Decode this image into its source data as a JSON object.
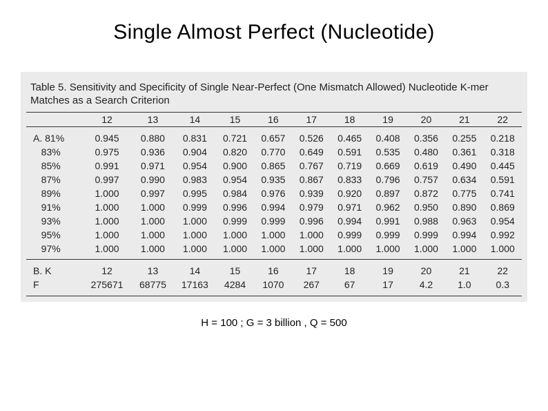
{
  "title": "Single Almost Perfect (Nucleotide)",
  "table": {
    "caption": "Table 5.  Sensitivity and Specificity of Single Near-Perfect (One Mismatch Allowed) Nucleotide K-mer Matches as a Search Criterion",
    "headers": [
      "12",
      "13",
      "14",
      "15",
      "16",
      "17",
      "18",
      "19",
      "20",
      "21",
      "22"
    ],
    "sectionA": {
      "label_prefix": "A.",
      "rows": [
        {
          "label": "81%",
          "values": [
            "0.945",
            "0.880",
            "0.831",
            "0.721",
            "0.657",
            "0.526",
            "0.465",
            "0.408",
            "0.356",
            "0.255",
            "0.218"
          ]
        },
        {
          "label": "83%",
          "values": [
            "0.975",
            "0.936",
            "0.904",
            "0.820",
            "0.770",
            "0.649",
            "0.591",
            "0.535",
            "0.480",
            "0.361",
            "0.318"
          ]
        },
        {
          "label": "85%",
          "values": [
            "0.991",
            "0.971",
            "0.954",
            "0.900",
            "0.865",
            "0.767",
            "0.719",
            "0.669",
            "0.619",
            "0.490",
            "0.445"
          ]
        },
        {
          "label": "87%",
          "values": [
            "0.997",
            "0.990",
            "0.983",
            "0.954",
            "0.935",
            "0.867",
            "0.833",
            "0.796",
            "0.757",
            "0.634",
            "0.591"
          ]
        },
        {
          "label": "89%",
          "values": [
            "1.000",
            "0.997",
            "0.995",
            "0.984",
            "0.976",
            "0.939",
            "0.920",
            "0.897",
            "0.872",
            "0.775",
            "0.741"
          ]
        },
        {
          "label": "91%",
          "values": [
            "1.000",
            "1.000",
            "0.999",
            "0.996",
            "0.994",
            "0.979",
            "0.971",
            "0.962",
            "0.950",
            "0.890",
            "0.869"
          ]
        },
        {
          "label": "93%",
          "values": [
            "1.000",
            "1.000",
            "1.000",
            "0.999",
            "0.999",
            "0.996",
            "0.994",
            "0.991",
            "0.988",
            "0.963",
            "0.954"
          ]
        },
        {
          "label": "95%",
          "values": [
            "1.000",
            "1.000",
            "1.000",
            "1.000",
            "1.000",
            "1.000",
            "0.999",
            "0.999",
            "0.999",
            "0.994",
            "0.992"
          ]
        },
        {
          "label": "97%",
          "values": [
            "1.000",
            "1.000",
            "1.000",
            "1.000",
            "1.000",
            "1.000",
            "1.000",
            "1.000",
            "1.000",
            "1.000",
            "1.000"
          ]
        }
      ]
    },
    "sectionB": {
      "row1": {
        "label": "B. K",
        "values": [
          "12",
          "13",
          "14",
          "15",
          "16",
          "17",
          "18",
          "19",
          "20",
          "21",
          "22"
        ]
      },
      "row2": {
        "label": "F",
        "values": [
          "275671",
          "68775",
          "17163",
          "4284",
          "1070",
          "267",
          "67",
          "17",
          "4.2",
          "1.0",
          "0.3"
        ]
      }
    }
  },
  "footer": "H = 100 ; G = 3 billion , Q = 500",
  "colors": {
    "background": "#ffffff",
    "table_bg": "#ebebeb",
    "rule": "#333333",
    "text": "#000000"
  },
  "fonts": {
    "title_size_pt": 22,
    "caption_size_pt": 11,
    "body_size_pt": 10,
    "footer_size_pt": 11
  }
}
